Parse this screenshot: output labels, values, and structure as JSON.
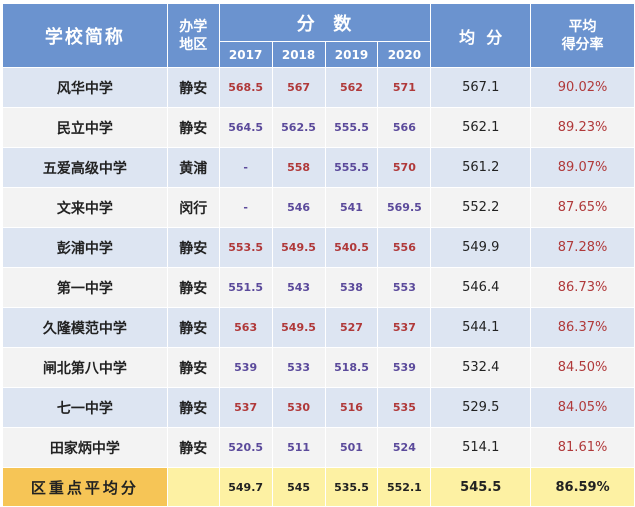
{
  "header": {
    "school": "学校简称",
    "district_line1": "办学",
    "district_line2": "地区",
    "scores": "分  数",
    "years": [
      "2017",
      "2018",
      "2019",
      "2020"
    ],
    "average": "均  分",
    "rate_line1": "平均",
    "rate_line2": "得分率"
  },
  "rows": [
    {
      "name": "风华中学",
      "district": "静安",
      "s": [
        "568.5",
        "567",
        "562",
        "571"
      ],
      "avg": "567.1",
      "rate": "90.02%",
      "colors": [
        "red",
        "red",
        "red",
        "red"
      ]
    },
    {
      "name": "民立中学",
      "district": "静安",
      "s": [
        "564.5",
        "562.5",
        "555.5",
        "566"
      ],
      "avg": "562.1",
      "rate": "89.23%",
      "colors": [
        "purple",
        "purple",
        "purple",
        "purple"
      ]
    },
    {
      "name": "五爱高级中学",
      "district": "黄浦",
      "s": [
        "-",
        "558",
        "555.5",
        "570"
      ],
      "avg": "561.2",
      "rate": "89.07%",
      "colors": [
        "purple",
        "red",
        "purple",
        "red"
      ]
    },
    {
      "name": "文来中学",
      "district": "闵行",
      "s": [
        "-",
        "546",
        "541",
        "569.5"
      ],
      "avg": "552.2",
      "rate": "87.65%",
      "colors": [
        "purple",
        "purple",
        "purple",
        "purple"
      ]
    },
    {
      "name": "彭浦中学",
      "district": "静安",
      "s": [
        "553.5",
        "549.5",
        "540.5",
        "556"
      ],
      "avg": "549.9",
      "rate": "87.28%",
      "colors": [
        "red",
        "red",
        "red",
        "red"
      ]
    },
    {
      "name": "第一中学",
      "district": "静安",
      "s": [
        "551.5",
        "543",
        "538",
        "553"
      ],
      "avg": "546.4",
      "rate": "86.73%",
      "colors": [
        "purple",
        "purple",
        "purple",
        "purple"
      ]
    },
    {
      "name": "久隆模范中学",
      "district": "静安",
      "s": [
        "563",
        "549.5",
        "527",
        "537"
      ],
      "avg": "544.1",
      "rate": "86.37%",
      "colors": [
        "red",
        "red",
        "red",
        "red"
      ]
    },
    {
      "name": "闸北第八中学",
      "district": "静安",
      "s": [
        "539",
        "533",
        "518.5",
        "539"
      ],
      "avg": "532.4",
      "rate": "84.50%",
      "colors": [
        "purple",
        "purple",
        "purple",
        "purple"
      ]
    },
    {
      "name": "七一中学",
      "district": "静安",
      "s": [
        "537",
        "530",
        "516",
        "535"
      ],
      "avg": "529.5",
      "rate": "84.05%",
      "colors": [
        "red",
        "red",
        "red",
        "red"
      ]
    },
    {
      "name": "田家炳中学",
      "district": "静安",
      "s": [
        "520.5",
        "511",
        "501",
        "524"
      ],
      "avg": "514.1",
      "rate": "81.61%",
      "colors": [
        "purple",
        "purple",
        "purple",
        "purple"
      ]
    }
  ],
  "footer": {
    "label": "区重点平均分",
    "s": [
      "549.7",
      "545",
      "535.5",
      "552.1"
    ],
    "avg": "545.5",
    "rate": "86.59%"
  },
  "colors": {
    "header": "#6b93cf",
    "row_light": "#dde5f2",
    "row_white": "#f3f3f3",
    "footer_label": "#f6c556",
    "footer": "#fdf1a3",
    "red_text": "#b0393a",
    "purple_text": "#5b4a9b"
  }
}
